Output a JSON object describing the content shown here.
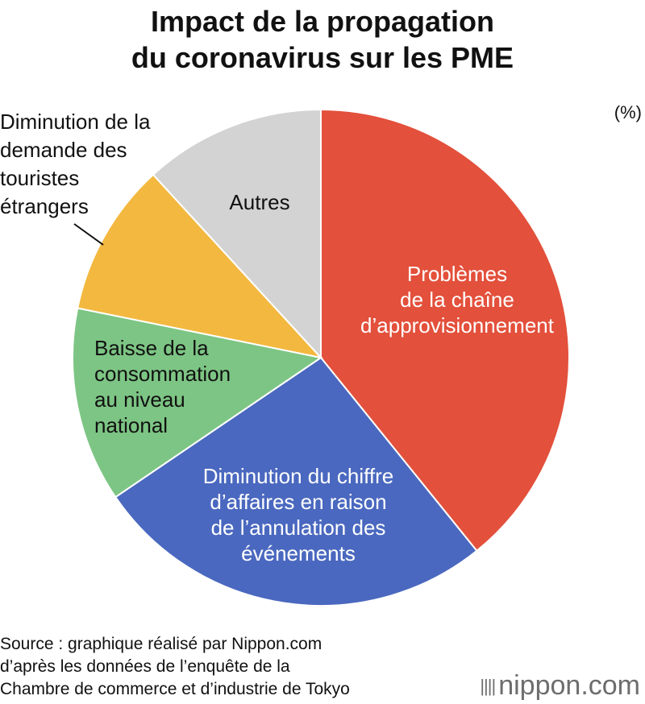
{
  "title": [
    "Impact de la propagation",
    "du coronavirus sur les PME"
  ],
  "unit": "(%)",
  "chart_data": {
    "type": "pie",
    "title": "Impact de la propagation du coronavirus sur les PME",
    "start_angle_deg": 0,
    "direction": "clockwise",
    "slices": [
      {
        "label": "Problèmes de la chaîne d’approvisionnement",
        "lines": [
          "Problèmes",
          "de la chaîne",
          "d’approvisionnement"
        ],
        "value": 39.2,
        "color": "#e3503b",
        "text_color": "#ffffff"
      },
      {
        "label": "Diminution du chiffre d’affaires en raison de l’annulation des événements",
        "lines": [
          "Diminution du chiffre",
          "d’affaires en raison",
          "de l’annulation des",
          "événements"
        ],
        "value": 26.3,
        "color": "#4a68bf",
        "text_color": "#ffffff"
      },
      {
        "label": "Baisse de la consommation au niveau national",
        "lines": [
          "Baisse de la",
          "consommation",
          "au niveau",
          "national"
        ],
        "value": 12.7,
        "color": "#7dc584",
        "text_color": "#111111",
        "text_anchor": "start"
      },
      {
        "label": "Diminution de la demande des touristes étrangers",
        "lines": [
          "Diminution de la",
          "demande des",
          "touristes",
          "étrangers"
        ],
        "value": 10.0,
        "color": "#f3b83f",
        "text_color": "#111111",
        "external": true
      },
      {
        "label": "Autres",
        "lines": [
          "Autres"
        ],
        "value": 11.8,
        "color": "#d3d3d3",
        "text_color": "#111111"
      }
    ]
  },
  "source": [
    "Source : graphique réalisé par Nippon.com",
    "d’après les données de l’enquête de la",
    "Chambre de commerce et d’industrie de Tokyo"
  ],
  "brand": {
    "bars": "||||",
    "name": "nippon",
    "suffix": ".com"
  }
}
